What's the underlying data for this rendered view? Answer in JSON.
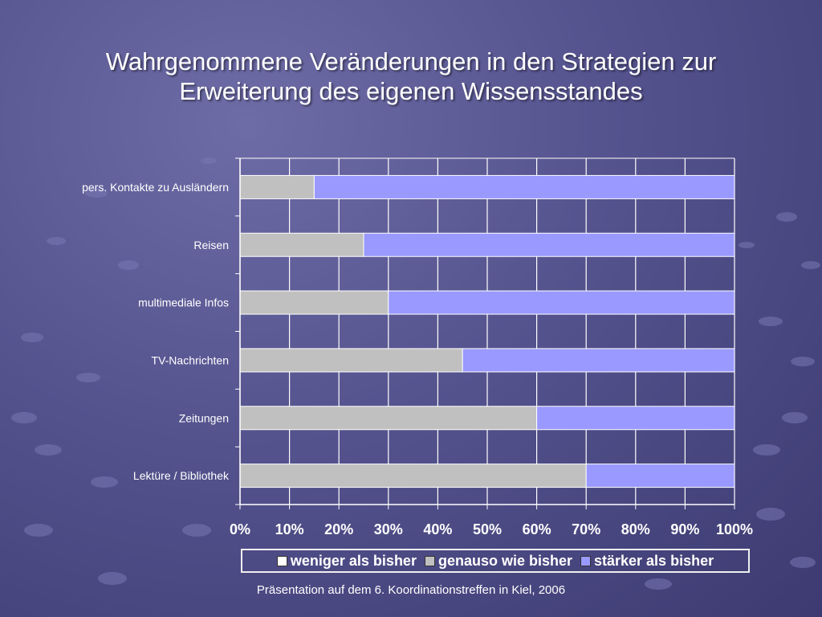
{
  "slide": {
    "title_line1": "Wahrgenommene Veränderungen in den Strategien zur",
    "title_line2": "Erweiterung des eigenen Wissensstandes",
    "footer": "Präsentation auf dem 6. Koordinationstreffen in Kiel, 2006"
  },
  "chart_data": {
    "type": "bar",
    "orientation": "horizontal",
    "stacked": "percent",
    "categories": [
      "pers. Kontakte zu Ausländern",
      "Reisen",
      "multimediale Infos",
      "TV-Nachrichten",
      "Zeitungen",
      "Lektüre / Bibliothek"
    ],
    "series": [
      {
        "name": "weniger als bisher",
        "color": "#ffffff",
        "values": [
          0,
          0,
          0,
          0,
          0,
          0
        ]
      },
      {
        "name": "genauso wie bisher",
        "color": "#c0c0c0",
        "values": [
          15,
          25,
          30,
          45,
          60,
          70
        ]
      },
      {
        "name": "stärker als bisher",
        "color": "#9999ff",
        "values": [
          85,
          75,
          70,
          55,
          40,
          30
        ]
      }
    ],
    "xlim": [
      0,
      100
    ],
    "xticks": [
      "0%",
      "10%",
      "20%",
      "30%",
      "40%",
      "50%",
      "60%",
      "70%",
      "80%",
      "90%",
      "100%"
    ],
    "grid": true,
    "legend_position": "bottom"
  }
}
